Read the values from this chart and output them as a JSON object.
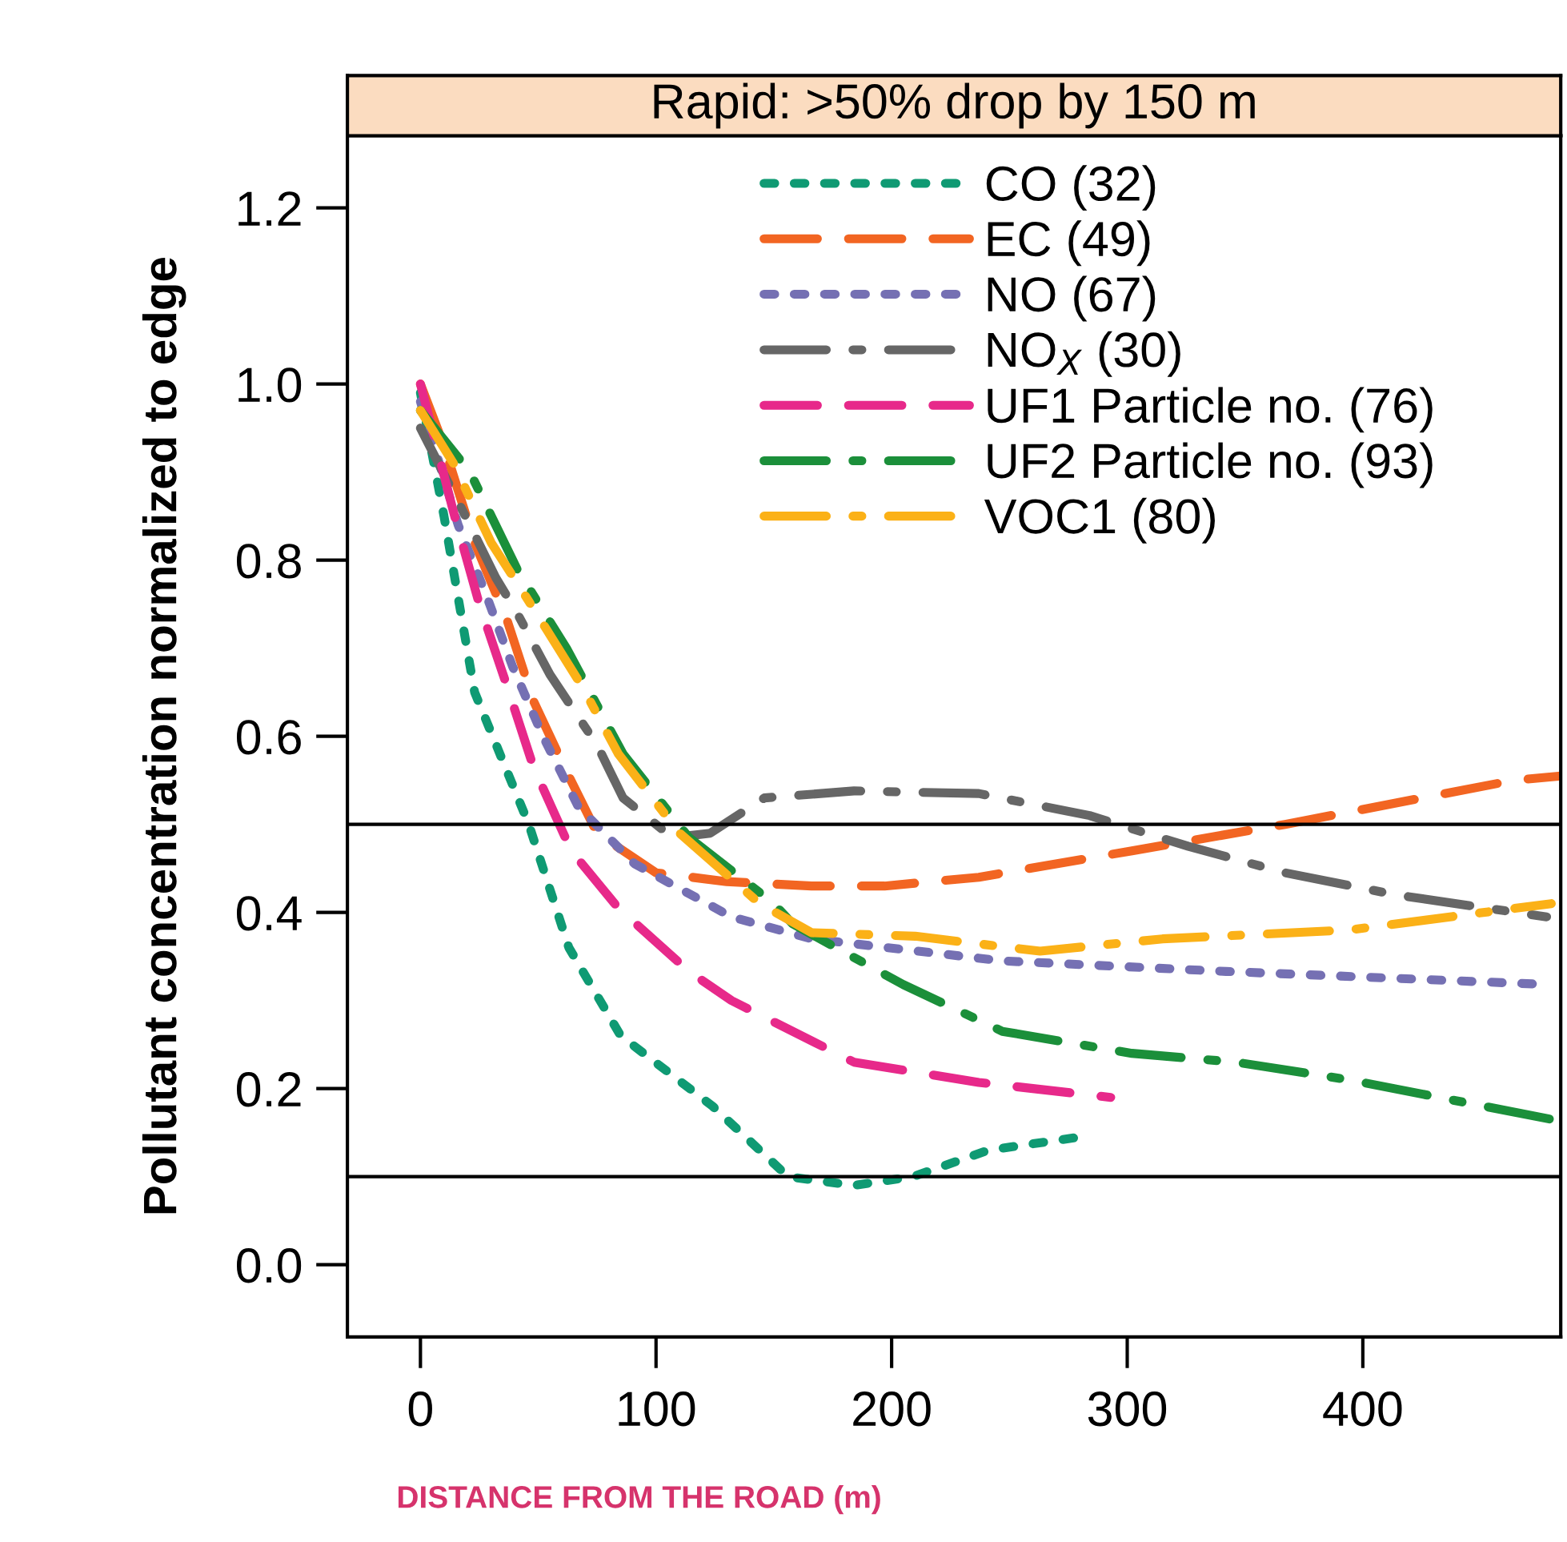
{
  "chart_data": {
    "type": "line",
    "title": "Rapid: >50% drop by 150 m",
    "xlabel": "DISTANCE FROM THE ROAD (m)",
    "ylabel": "Pollutant concentration normalized to edge",
    "xlim": [
      -31,
      484
    ],
    "ylim": [
      -0.082,
      1.282
    ],
    "xticks": [
      0,
      100,
      200,
      300,
      400
    ],
    "yticks": [
      {
        "value": 0,
        "label": "0.0"
      },
      0.2,
      0.4,
      0.6,
      0.8,
      {
        "value": 1,
        "label": "1.0"
      },
      1.2
    ],
    "grid": false,
    "legend": "top",
    "marker": "none",
    "ref_lines": [
      {
        "axis": "y",
        "value": 0.5,
        "color": "#000000"
      },
      {
        "axis": "y",
        "value": 0.1,
        "color": "#000000"
      }
    ],
    "series": [
      {
        "name": "CO (32)",
        "color": "#0f9a73",
        "line_style": "dotted",
        "x": [
          0,
          10,
          23,
          46,
          63,
          85,
          124,
          156,
          184,
          209,
          241,
          280
        ],
        "values": [
          0.99,
          0.85,
          0.65,
          0.5,
          0.36,
          0.26,
          0.18,
          0.1,
          0.09,
          0.1,
          0.13,
          0.145
        ]
      },
      {
        "name": "EC (49)",
        "color": "#f26522",
        "line_style": "dashed",
        "x": [
          0,
          10,
          23,
          37,
          48,
          62,
          75,
          100,
          130,
          166,
          197,
          237,
          302,
          367,
          464,
          484
        ],
        "values": [
          1.0,
          0.93,
          0.82,
          0.73,
          0.64,
          0.56,
          0.49,
          0.445,
          0.435,
          0.43,
          0.43,
          0.44,
          0.47,
          0.5,
          0.55,
          0.555
        ]
      },
      {
        "name": "NO (67)",
        "color": "#7570b3",
        "line_style": "dotted",
        "x": [
          0,
          16,
          28,
          39,
          52,
          67,
          91,
          132,
          166,
          247,
          342,
          480
        ],
        "values": [
          0.98,
          0.84,
          0.76,
          0.68,
          0.6,
          0.52,
          0.455,
          0.395,
          0.37,
          0.345,
          0.333,
          0.318
        ]
      },
      {
        "name": "NO$_{X}$ (30)",
        "color": "#666666",
        "line_style": "dashdot",
        "x": [
          0,
          21,
          32,
          41,
          55,
          75,
          86,
          107,
          123,
          146,
          184,
          237,
          284,
          326,
          367,
          414,
          478
        ],
        "values": [
          0.95,
          0.84,
          0.78,
          0.74,
          0.67,
          0.59,
          0.53,
          0.485,
          0.49,
          0.53,
          0.538,
          0.535,
          0.51,
          0.475,
          0.445,
          0.42,
          0.395
        ]
      },
      {
        "name": "UF1 Particle no. (76)",
        "color": "#e7298a",
        "line_style": "dashed",
        "x": [
          0,
          14,
          25,
          37,
          48,
          64,
          84,
          114,
          132,
          184,
          237,
          293
        ],
        "values": [
          1.0,
          0.855,
          0.75,
          0.655,
          0.565,
          0.47,
          0.405,
          0.333,
          0.3,
          0.23,
          0.207,
          0.19
        ]
      },
      {
        "name": "UF2 Particle no. (93)",
        "color": "#1b8f3a",
        "line_style": "dashdot",
        "x": [
          0,
          21,
          41,
          62,
          86,
          114,
          150,
          158,
          205,
          247,
          302,
          346,
          394,
          482
        ],
        "values": [
          0.97,
          0.9,
          0.79,
          0.7,
          0.58,
          0.485,
          0.41,
          0.387,
          0.318,
          0.265,
          0.24,
          0.23,
          0.21,
          0.164
        ]
      },
      {
        "name": "VOC1 (80)",
        "color": "#fbb117",
        "line_style": "dashdot",
        "x": [
          0,
          14,
          30,
          48,
          69,
          84,
          110,
          144,
          166,
          210,
          263,
          315,
          394,
          480
        ],
        "values": [
          0.97,
          0.91,
          0.82,
          0.745,
          0.655,
          0.58,
          0.49,
          0.41,
          0.377,
          0.373,
          0.356,
          0.37,
          0.38,
          0.41
        ]
      }
    ]
  }
}
